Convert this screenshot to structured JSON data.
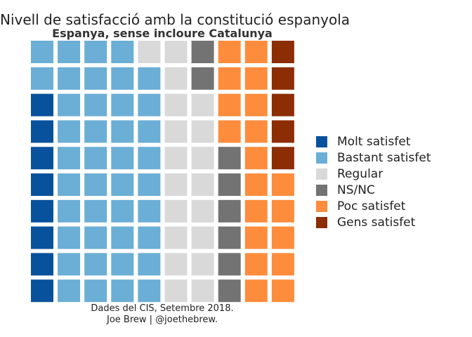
{
  "chart_data": {
    "type": "waffle",
    "title": "Nivell de satisfacció amb la constitució espanyola",
    "subtitle": "Espanya, sense incloure Catalunya",
    "caption": [
      "Dades del CIS, Setembre 2018.",
      "Joe Brew | @joethebrew."
    ],
    "grid": {
      "columns": 10,
      "rows": 10,
      "fill_order": "column-major, bottom-to-top"
    },
    "categories": [
      {
        "name": "Molt satisfet",
        "squares": 8,
        "color": "#08519c"
      },
      {
        "name": "Bastant satisfet",
        "squares": 41,
        "color": "#6baed6"
      },
      {
        "name": "Regular",
        "squares": 19,
        "color": "#d9d9d9"
      },
      {
        "name": "NS/NC",
        "squares": 8,
        "color": "#737373"
      },
      {
        "name": "Poc satisfet",
        "squares": 19,
        "color": "#fd8d3c"
      },
      {
        "name": "Gens satisfet",
        "squares": 5,
        "color": "#8c2d04"
      }
    ],
    "legend_position": "right"
  }
}
